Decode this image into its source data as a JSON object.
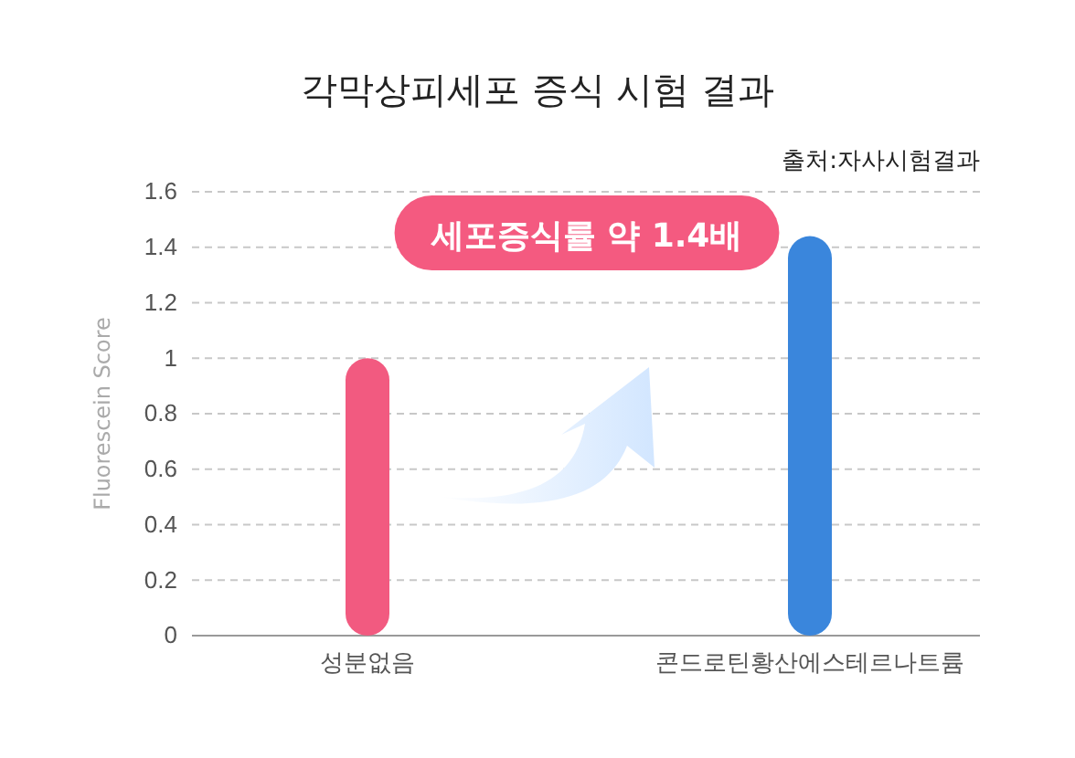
{
  "chart_data": {
    "type": "bar",
    "title": "각막상피세포 증식 시험 결과",
    "ylabel": "Fluorescein Score",
    "categories": [
      "성분없음",
      "콘드로틴황산에스테르나트륨"
    ],
    "values": [
      1.0,
      1.44
    ],
    "colors": [
      "#f25a80",
      "#3a86dc"
    ],
    "ylim": [
      0,
      1.6
    ],
    "yticks": [
      0,
      0.2,
      0.4,
      0.6,
      0.8,
      1,
      1.2,
      1.4,
      1.6
    ],
    "grid": "y",
    "annotations": [
      "출처:자사시험결과",
      "세포증식률 약 1.4배"
    ]
  }
}
